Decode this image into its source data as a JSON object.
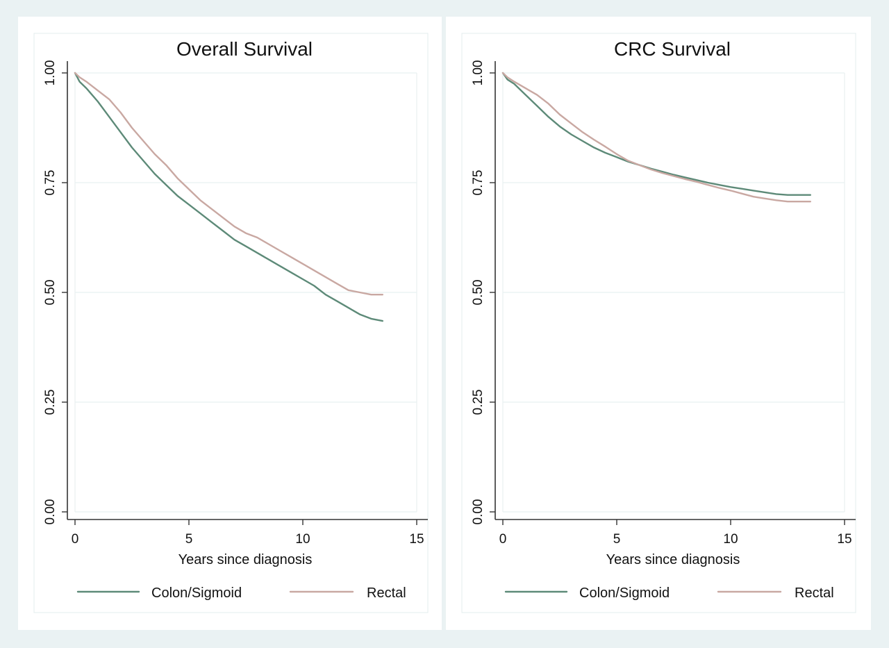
{
  "chart_data": [
    {
      "type": "line",
      "title": "Overall Survival",
      "xlabel": "Years since diagnosis",
      "ylabel": "",
      "xlim": [
        0,
        15
      ],
      "ylim": [
        0,
        1
      ],
      "xticks": [
        0,
        5,
        10,
        15
      ],
      "xtick_labels": [
        "0",
        "5",
        "10",
        "15"
      ],
      "yticks": [
        0,
        0.25,
        0.5,
        0.75,
        1.0
      ],
      "ytick_labels": [
        "0.00",
        "0.25",
        "0.50",
        "0.75",
        "1.00"
      ],
      "grid": true,
      "legend_position": "bottom",
      "series": [
        {
          "name": "Colon/Sigmoid",
          "color": "#5d8a78",
          "x": [
            0,
            0.2,
            0.5,
            1,
            1.5,
            2,
            2.5,
            3,
            3.5,
            4,
            4.5,
            5,
            5.5,
            6,
            6.5,
            7,
            7.5,
            8,
            8.5,
            9,
            9.5,
            10,
            10.5,
            11,
            11.5,
            12,
            12.5,
            13,
            13.5
          ],
          "y": [
            1.0,
            0.98,
            0.965,
            0.935,
            0.9,
            0.865,
            0.83,
            0.8,
            0.77,
            0.745,
            0.72,
            0.7,
            0.68,
            0.66,
            0.64,
            0.62,
            0.605,
            0.59,
            0.575,
            0.56,
            0.545,
            0.53,
            0.515,
            0.495,
            0.48,
            0.465,
            0.45,
            0.44,
            0.435
          ]
        },
        {
          "name": "Rectal",
          "color": "#c9a8a2",
          "x": [
            0,
            0.2,
            0.5,
            1,
            1.5,
            2,
            2.5,
            3,
            3.5,
            4,
            4.5,
            5,
            5.5,
            6,
            6.5,
            7,
            7.5,
            8,
            8.5,
            9,
            9.5,
            10,
            10.5,
            11,
            11.5,
            12,
            12.5,
            13,
            13.5
          ],
          "y": [
            1.0,
            0.99,
            0.98,
            0.96,
            0.94,
            0.91,
            0.875,
            0.845,
            0.815,
            0.79,
            0.76,
            0.735,
            0.71,
            0.69,
            0.67,
            0.65,
            0.635,
            0.625,
            0.61,
            0.595,
            0.58,
            0.565,
            0.55,
            0.535,
            0.52,
            0.505,
            0.5,
            0.495,
            0.495
          ]
        }
      ]
    },
    {
      "type": "line",
      "title": "CRC Survival",
      "xlabel": "Years since diagnosis",
      "ylabel": "",
      "xlim": [
        0,
        15
      ],
      "ylim": [
        0,
        1
      ],
      "xticks": [
        0,
        5,
        10,
        15
      ],
      "xtick_labels": [
        "0",
        "5",
        "10",
        "15"
      ],
      "yticks": [
        0,
        0.25,
        0.5,
        0.75,
        1.0
      ],
      "ytick_labels": [
        "0.00",
        "0.25",
        "0.50",
        "0.75",
        "1.00"
      ],
      "grid": true,
      "legend_position": "bottom",
      "series": [
        {
          "name": "Colon/Sigmoid",
          "color": "#5d8a78",
          "x": [
            0,
            0.2,
            0.5,
            1,
            1.5,
            2,
            2.5,
            3,
            3.5,
            4,
            4.5,
            5,
            5.5,
            6,
            6.5,
            7,
            7.5,
            8,
            8.5,
            9,
            9.5,
            10,
            10.5,
            11,
            11.5,
            12,
            12.5,
            13,
            13.5
          ],
          "y": [
            1.0,
            0.985,
            0.975,
            0.95,
            0.925,
            0.9,
            0.878,
            0.86,
            0.845,
            0.83,
            0.818,
            0.808,
            0.798,
            0.79,
            0.782,
            0.775,
            0.768,
            0.762,
            0.756,
            0.75,
            0.745,
            0.74,
            0.736,
            0.732,
            0.728,
            0.724,
            0.722,
            0.722,
            0.722
          ]
        },
        {
          "name": "Rectal",
          "color": "#c9a8a2",
          "x": [
            0,
            0.2,
            0.5,
            1,
            1.5,
            2,
            2.5,
            3,
            3.5,
            4,
            4.5,
            5,
            5.5,
            6,
            6.5,
            7,
            7.5,
            8,
            8.5,
            9,
            9.5,
            10,
            10.5,
            11,
            11.5,
            12,
            12.5,
            13,
            13.5
          ],
          "y": [
            1.0,
            0.99,
            0.98,
            0.965,
            0.95,
            0.93,
            0.905,
            0.885,
            0.865,
            0.848,
            0.832,
            0.815,
            0.8,
            0.79,
            0.78,
            0.772,
            0.765,
            0.758,
            0.752,
            0.745,
            0.738,
            0.732,
            0.725,
            0.718,
            0.714,
            0.71,
            0.707,
            0.707,
            0.707
          ]
        }
      ]
    }
  ]
}
